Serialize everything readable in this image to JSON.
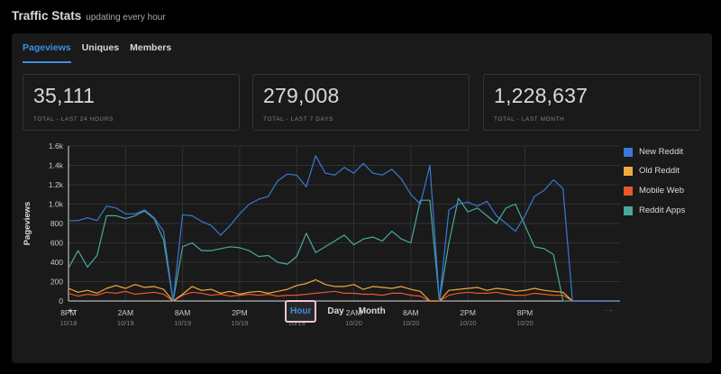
{
  "header": {
    "title": "Traffic Stats",
    "subtitle": "updating every hour"
  },
  "tabs": [
    {
      "label": "Pageviews",
      "active": true
    },
    {
      "label": "Uniques",
      "active": false
    },
    {
      "label": "Members",
      "active": false
    }
  ],
  "stats": [
    {
      "value": "35,111",
      "label": "TOTAL - LAST 24 HOURS"
    },
    {
      "value": "279,008",
      "label": "TOTAL - LAST 7 DAYS"
    },
    {
      "value": "1,228,637",
      "label": "TOTAL - LAST MONTH"
    }
  ],
  "icons": {
    "back": "←",
    "forward": "→"
  },
  "range_buttons": [
    {
      "label": "Hour",
      "active": true
    },
    {
      "label": "Day",
      "active": false
    },
    {
      "label": "Month",
      "active": false
    }
  ],
  "colors": {
    "accent": "#3e8ede",
    "panel": "#1a1a1b"
  },
  "chart_data": {
    "type": "line",
    "ylabel": "Pageviews",
    "xlabel": "",
    "ylim": [
      0,
      1600
    ],
    "yticks": [
      {
        "value": 0,
        "label": "0"
      },
      {
        "value": 200,
        "label": "200"
      },
      {
        "value": 400,
        "label": "400"
      },
      {
        "value": 600,
        "label": "600"
      },
      {
        "value": 800,
        "label": "800"
      },
      {
        "value": 1000,
        "label": "1.0k"
      },
      {
        "value": 1200,
        "label": "1.2k"
      },
      {
        "value": 1400,
        "label": "1.4k"
      },
      {
        "value": 1600,
        "label": "1.6k"
      }
    ],
    "xticks": [
      {
        "hour": 0,
        "time": "8PM",
        "date": "10/18"
      },
      {
        "hour": 6,
        "time": "2AM",
        "date": "10/19"
      },
      {
        "hour": 12,
        "time": "8AM",
        "date": "10/19"
      },
      {
        "hour": 18,
        "time": "2PM",
        "date": "10/19"
      },
      {
        "hour": 24,
        "time": "8PM",
        "date": "10/19"
      },
      {
        "hour": 30,
        "time": "2AM",
        "date": "10/20"
      },
      {
        "hour": 36,
        "time": "8AM",
        "date": "10/20"
      },
      {
        "hour": 42,
        "time": "2PM",
        "date": "10/20"
      },
      {
        "hour": 48,
        "time": "8PM",
        "date": "10/20"
      }
    ],
    "legend_position": "right",
    "grid": true,
    "series": [
      {
        "name": "New Reddit",
        "color": "#3a78d4",
        "values": [
          830,
          830,
          860,
          830,
          980,
          960,
          900,
          900,
          940,
          860,
          720,
          0,
          890,
          880,
          820,
          780,
          680,
          780,
          900,
          1000,
          1050,
          1080,
          1240,
          1310,
          1300,
          1180,
          1500,
          1320,
          1300,
          1380,
          1320,
          1420,
          1320,
          1300,
          1360,
          1260,
          1100,
          1000,
          1400,
          0,
          940,
          1000,
          1020,
          980,
          1030,
          880,
          800,
          720,
          880,
          1080,
          1140,
          1250,
          1160,
          0,
          0,
          0,
          0,
          0,
          0
        ]
      },
      {
        "name": "Old Reddit",
        "color": "#f0a93f",
        "values": [
          130,
          90,
          110,
          80,
          130,
          160,
          130,
          170,
          140,
          150,
          120,
          0,
          70,
          150,
          110,
          120,
          80,
          100,
          70,
          90,
          100,
          80,
          100,
          120,
          160,
          180,
          220,
          170,
          150,
          150,
          170,
          120,
          150,
          140,
          130,
          150,
          120,
          100,
          0,
          0,
          110,
          120,
          130,
          140,
          110,
          130,
          120,
          100,
          110,
          130,
          110,
          100,
          90,
          0,
          0,
          0,
          0,
          0,
          0
        ]
      },
      {
        "name": "Mobile Web",
        "color": "#e9572a",
        "values": [
          80,
          50,
          70,
          60,
          90,
          80,
          100,
          70,
          80,
          90,
          70,
          0,
          60,
          90,
          80,
          60,
          70,
          50,
          60,
          70,
          60,
          70,
          50,
          60,
          60,
          70,
          80,
          90,
          100,
          80,
          80,
          70,
          70,
          60,
          80,
          80,
          60,
          50,
          0,
          0,
          60,
          80,
          90,
          80,
          80,
          90,
          70,
          60,
          60,
          80,
          70,
          60,
          60,
          0,
          0,
          0,
          0,
          0,
          0
        ]
      },
      {
        "name": "Reddit Apps",
        "color": "#4aa89e",
        "values": [
          340,
          520,
          350,
          470,
          880,
          880,
          850,
          880,
          930,
          850,
          630,
          0,
          560,
          600,
          520,
          520,
          540,
          560,
          550,
          520,
          460,
          470,
          400,
          380,
          460,
          700,
          500,
          560,
          620,
          680,
          580,
          640,
          660,
          620,
          720,
          640,
          600,
          1040,
          1040,
          0,
          600,
          1060,
          920,
          960,
          880,
          800,
          960,
          1000,
          780,
          560,
          540,
          480,
          0,
          0,
          0,
          0,
          0,
          0,
          0
        ]
      }
    ]
  }
}
